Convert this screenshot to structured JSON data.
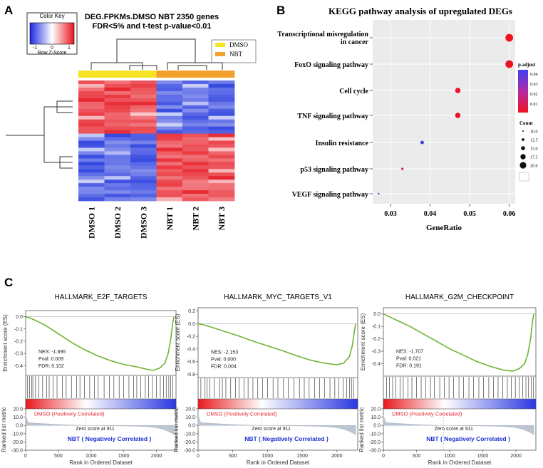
{
  "panels": {
    "a": "A",
    "b": "B",
    "c": "C"
  },
  "heatmap": {
    "color_key_title": "Color Key",
    "color_key_ticks": [
      "-1",
      "0",
      "1"
    ],
    "color_key_label": "Row Z-Score",
    "title_line1": "DEG.FPKMs.DMSO  NBT  2350 genes",
    "title_line2": "FDR<5% and t-test p-value<0.01",
    "legend": [
      {
        "name": "DMSO",
        "color": "#f4e424"
      },
      {
        "name": "NBT",
        "color": "#f2a12c"
      }
    ],
    "samples": [
      "DMSO 1",
      "DMSO 2",
      "DMSO 3",
      "NBT 1",
      "NBT 2",
      "NBT 3"
    ],
    "sample_groups": [
      "DMSO",
      "DMSO",
      "DMSO",
      "NBT",
      "NBT",
      "NBT"
    ],
    "colors": {
      "up": "#e8242d",
      "down": "#3346e0",
      "mid": "#ffffff"
    }
  },
  "chart_data": [
    {
      "type": "scatter",
      "title": "KEGG pathway analysis of upregulated DEGs",
      "xlabel": "GeneRatio",
      "ylabel": "",
      "xlim": [
        0.0255,
        0.0615
      ],
      "xticks": [
        "0.03",
        "0.04",
        "0.05",
        "0.06"
      ],
      "pathways": [
        {
          "name_lines": [
            "Transcriptional misregulation",
            "in cancer"
          ],
          "gene_ratio": 0.06,
          "count": 20,
          "p_adjust": 0.002
        },
        {
          "name_lines": [
            "FoxO signaling pathway"
          ],
          "gene_ratio": 0.06,
          "count": 20,
          "p_adjust": 0.003
        },
        {
          "name_lines": [
            "Cell cycle"
          ],
          "gene_ratio": 0.047,
          "count": 16,
          "p_adjust": 0.004
        },
        {
          "name_lines": [
            "TNF signaling pathway"
          ],
          "gene_ratio": 0.047,
          "count": 16,
          "p_adjust": 0.004
        },
        {
          "name_lines": [
            "Insulin resistance"
          ],
          "gene_ratio": 0.038,
          "count": 13,
          "p_adjust": 0.045
        },
        {
          "name_lines": [
            "p53 signaling pathway"
          ],
          "gene_ratio": 0.033,
          "count": 11,
          "p_adjust": 0.01
        },
        {
          "name_lines": [
            "VEGF signaling pathway"
          ],
          "gene_ratio": 0.027,
          "count": 10,
          "p_adjust": 0.04
        }
      ],
      "color_legend": {
        "title": "p.adjust",
        "ticks": [
          "0.04",
          "0.03",
          "0.02",
          "0.01"
        ]
      },
      "size_legend": {
        "title": "Count",
        "labels": [
          "10.0",
          "12.5",
          "15.0",
          "17.5",
          "20.0"
        ],
        "values": [
          10,
          12.5,
          15,
          17.5,
          20
        ]
      }
    },
    {
      "type": "line",
      "title": "HALLMARK_E2F_TARGETS",
      "es_ylabel": "Enrichment score (ES)",
      "es_yticks": [
        "0.0",
        "-0.1",
        "-0.2",
        "-0.3",
        "-0.4"
      ],
      "es_ylim": [
        -0.48,
        0.05
      ],
      "es_curve": [
        [
          0,
          0
        ],
        [
          60,
          -0.01
        ],
        [
          150,
          -0.03
        ],
        [
          300,
          -0.07
        ],
        [
          500,
          -0.14
        ],
        [
          700,
          -0.21
        ],
        [
          900,
          -0.27
        ],
        [
          1100,
          -0.32
        ],
        [
          1300,
          -0.36
        ],
        [
          1500,
          -0.39
        ],
        [
          1700,
          -0.41
        ],
        [
          1850,
          -0.43
        ],
        [
          1950,
          -0.44
        ],
        [
          2050,
          -0.42
        ],
        [
          2130,
          -0.38
        ],
        [
          2180,
          -0.3
        ],
        [
          2220,
          -0.18
        ],
        [
          2250,
          -0.05
        ],
        [
          2270,
          0
        ]
      ],
      "hits": [
        30,
        60,
        90,
        110,
        150,
        200,
        260,
        320,
        360,
        420,
        480,
        560,
        620,
        700,
        780,
        830,
        900,
        980,
        1050,
        1110,
        1200,
        1280,
        1350,
        1430,
        1500,
        1580,
        1650,
        1700,
        1760,
        1830,
        1880,
        1940,
        2000,
        2060,
        2110,
        2150,
        2190,
        2220,
        2250
      ],
      "stats": [
        "NES: -1.695",
        "Pval: 0.009",
        "FDR: 0.102"
      ],
      "metric_ylabel": "Ranked list metric",
      "metric_yticks": [
        "20.0",
        "10.0",
        "0.0",
        "-10.0",
        "-20.0",
        "-30.0"
      ],
      "metric_ylim": [
        -30,
        20
      ],
      "positive_label": "DMSO (Positively Correlated)",
      "negative_label": "NBT ( Negatively Correlated )",
      "zero_label": "Zero score at 911",
      "zero_score_at": 911,
      "xlabel": "Rank in Ordered Dataset",
      "xticks": [
        "0",
        "500",
        "1000",
        "1500",
        "2000"
      ],
      "xlim": [
        0,
        2300
      ]
    },
    {
      "type": "line",
      "title": "HALLMARK_MYC_TARGETS_V1",
      "es_ylabel": "Enrichment score (ES)",
      "es_yticks": [
        "0.2",
        "0.0",
        "-0.2",
        "-0.4",
        "-0.6",
        "-0.8"
      ],
      "es_ylim": [
        -0.85,
        0.25
      ],
      "es_curve": [
        [
          0,
          0
        ],
        [
          80,
          -0.02
        ],
        [
          200,
          -0.06
        ],
        [
          400,
          -0.13
        ],
        [
          600,
          -0.2
        ],
        [
          800,
          -0.28
        ],
        [
          1000,
          -0.35
        ],
        [
          1200,
          -0.42
        ],
        [
          1400,
          -0.5
        ],
        [
          1600,
          -0.57
        ],
        [
          1800,
          -0.62
        ],
        [
          2000,
          -0.65
        ],
        [
          2100,
          -0.62
        ],
        [
          2180,
          -0.52
        ],
        [
          2220,
          -0.36
        ],
        [
          2250,
          -0.14
        ],
        [
          2270,
          0
        ]
      ],
      "hits": [
        40,
        100,
        130,
        170,
        230,
        310,
        350,
        400,
        470,
        540,
        590,
        660,
        720,
        790,
        860,
        930,
        1000,
        1080,
        1150,
        1230,
        1300,
        1380,
        1460,
        1530,
        1600,
        1680,
        1750,
        1820,
        1900,
        1970,
        2030,
        2090,
        2140,
        2180,
        2210,
        2240
      ],
      "stats": [
        "NES: -2.153",
        "Pval: 0.000",
        "FDR: 0.004"
      ],
      "metric_ylabel": "Ranked list metric",
      "metric_yticks": [
        "20.0",
        "10.0",
        "0.0",
        "-10.0",
        "-20.0",
        "-30.0"
      ],
      "metric_ylim": [
        -30,
        20
      ],
      "positive_label": "DMSO (Positively Correlated)",
      "negative_label": "NBT ( Negatively Correlated )",
      "zero_label": "Zero score at 911",
      "zero_score_at": 911,
      "xlabel": "Rank in Ordered Dataset",
      "xticks": [
        "0",
        "500",
        "1000",
        "1500",
        "2000"
      ],
      "xlim": [
        0,
        2300
      ]
    },
    {
      "type": "line",
      "title": "HALLMARK_G2M_CHECKPOINT",
      "es_ylabel": "Enrichment score (ES)",
      "es_yticks": [
        "0.0",
        "-0.1",
        "-0.2",
        "-0.3",
        "-0.4"
      ],
      "es_ylim": [
        -0.5,
        0.05
      ],
      "es_curve": [
        [
          0,
          0
        ],
        [
          80,
          -0.02
        ],
        [
          200,
          -0.05
        ],
        [
          400,
          -0.1
        ],
        [
          600,
          -0.16
        ],
        [
          800,
          -0.22
        ],
        [
          1000,
          -0.28
        ],
        [
          1200,
          -0.33
        ],
        [
          1400,
          -0.38
        ],
        [
          1600,
          -0.42
        ],
        [
          1800,
          -0.45
        ],
        [
          1950,
          -0.46
        ],
        [
          2050,
          -0.44
        ],
        [
          2130,
          -0.4
        ],
        [
          2180,
          -0.32
        ],
        [
          2220,
          -0.2
        ],
        [
          2250,
          -0.06
        ],
        [
          2270,
          0
        ]
      ],
      "hits": [
        50,
        90,
        140,
        190,
        250,
        300,
        370,
        430,
        500,
        570,
        640,
        710,
        770,
        850,
        920,
        990,
        1060,
        1140,
        1210,
        1290,
        1360,
        1440,
        1510,
        1590,
        1660,
        1730,
        1800,
        1870,
        1930,
        1990,
        2050,
        2100,
        2150,
        2190,
        2230,
        2260
      ],
      "stats": [
        "NES: -1.707",
        "Pval: 0.021",
        "FDR: 0.191"
      ],
      "metric_ylabel": "Ranked list metric",
      "metric_yticks": [
        "20.0",
        "10.0",
        "0.0",
        "-10.0",
        "-20.0",
        "-30.0"
      ],
      "metric_ylim": [
        -30,
        20
      ],
      "positive_label": "DMSO (Positively Correlated)",
      "negative_label": "NBT ( Negatively Correlated )",
      "zero_label": "Zero score at 911",
      "zero_score_at": 911,
      "xlabel": "Rank in Ordered Dataset",
      "xticks": [
        "0",
        "500",
        "1000",
        "1500",
        "2000"
      ],
      "xlim": [
        0,
        2300
      ]
    }
  ]
}
